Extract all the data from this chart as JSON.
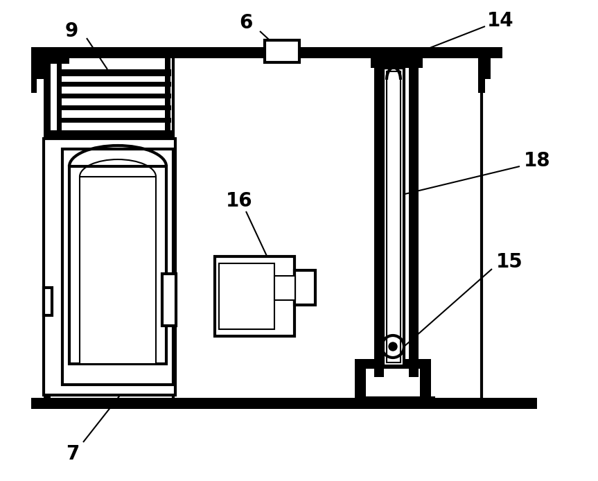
{
  "background_color": "#ffffff",
  "line_color": "#000000",
  "lw_thick": 5,
  "lw_med": 3,
  "lw_thin": 1.5,
  "label_fontsize": 20,
  "label_fontweight": "bold"
}
